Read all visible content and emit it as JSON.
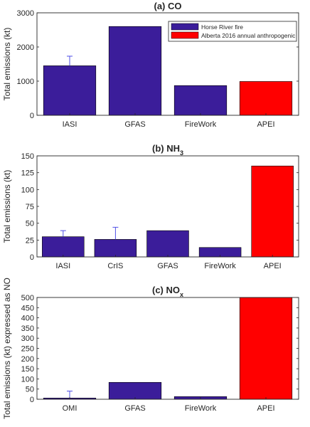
{
  "colors": {
    "fire": "#3b1d9a",
    "anthro": "#ff0000",
    "errorbar": "#4f4fe6",
    "axis": "#262626",
    "grid": "#e6e6e6"
  },
  "legend": {
    "entries": [
      {
        "label": "Horse River fire",
        "color": "#3b1d9a"
      },
      {
        "label": "Alberta 2016 annual anthropogenic",
        "color": "#ff0000"
      }
    ],
    "placement": "top-right of panel (a)"
  },
  "chart_data": [
    {
      "type": "bar",
      "title": "(a) CO",
      "title_sub": "",
      "ylabel": "Total emissions (kt)",
      "ylim": [
        0,
        3000
      ],
      "yticks": [
        0,
        1000,
        2000,
        3000
      ],
      "grid": false,
      "categories": [
        "IASI",
        "GFAS",
        "FireWork",
        "APEI"
      ],
      "values": [
        1450,
        2600,
        870,
        990
      ],
      "series_of_bar": [
        "fire",
        "fire",
        "fire",
        "anthro"
      ],
      "error_upper": [
        1730,
        null,
        null,
        null
      ]
    },
    {
      "type": "bar",
      "title": "(b) NH",
      "title_sub": "3",
      "ylabel": "Total emissions (kt)",
      "ylim": [
        0,
        150
      ],
      "yticks": [
        0,
        25,
        50,
        75,
        100,
        125,
        150
      ],
      "grid": false,
      "categories": [
        "IASI",
        "CrIS",
        "GFAS",
        "FireWork",
        "APEI"
      ],
      "values": [
        30,
        26,
        39,
        14,
        135
      ],
      "series_of_bar": [
        "fire",
        "fire",
        "fire",
        "fire",
        "anthro"
      ],
      "error_upper": [
        39,
        44,
        null,
        null,
        null
      ]
    },
    {
      "type": "bar",
      "title": "(c) NO",
      "title_sub": "x",
      "ylabel": "Total emissions (kt) expressed as NO",
      "ylim": [
        0,
        500
      ],
      "yticks": [
        0,
        50,
        100,
        150,
        200,
        250,
        300,
        350,
        400,
        450,
        500
      ],
      "grid": false,
      "categories": [
        "OMI",
        "GFAS",
        "FireWork",
        "APEI"
      ],
      "values": [
        6,
        83,
        13,
        500
      ],
      "series_of_bar": [
        "fire",
        "fire",
        "fire",
        "anthro"
      ],
      "error_upper": [
        40,
        null,
        null,
        null
      ]
    }
  ]
}
